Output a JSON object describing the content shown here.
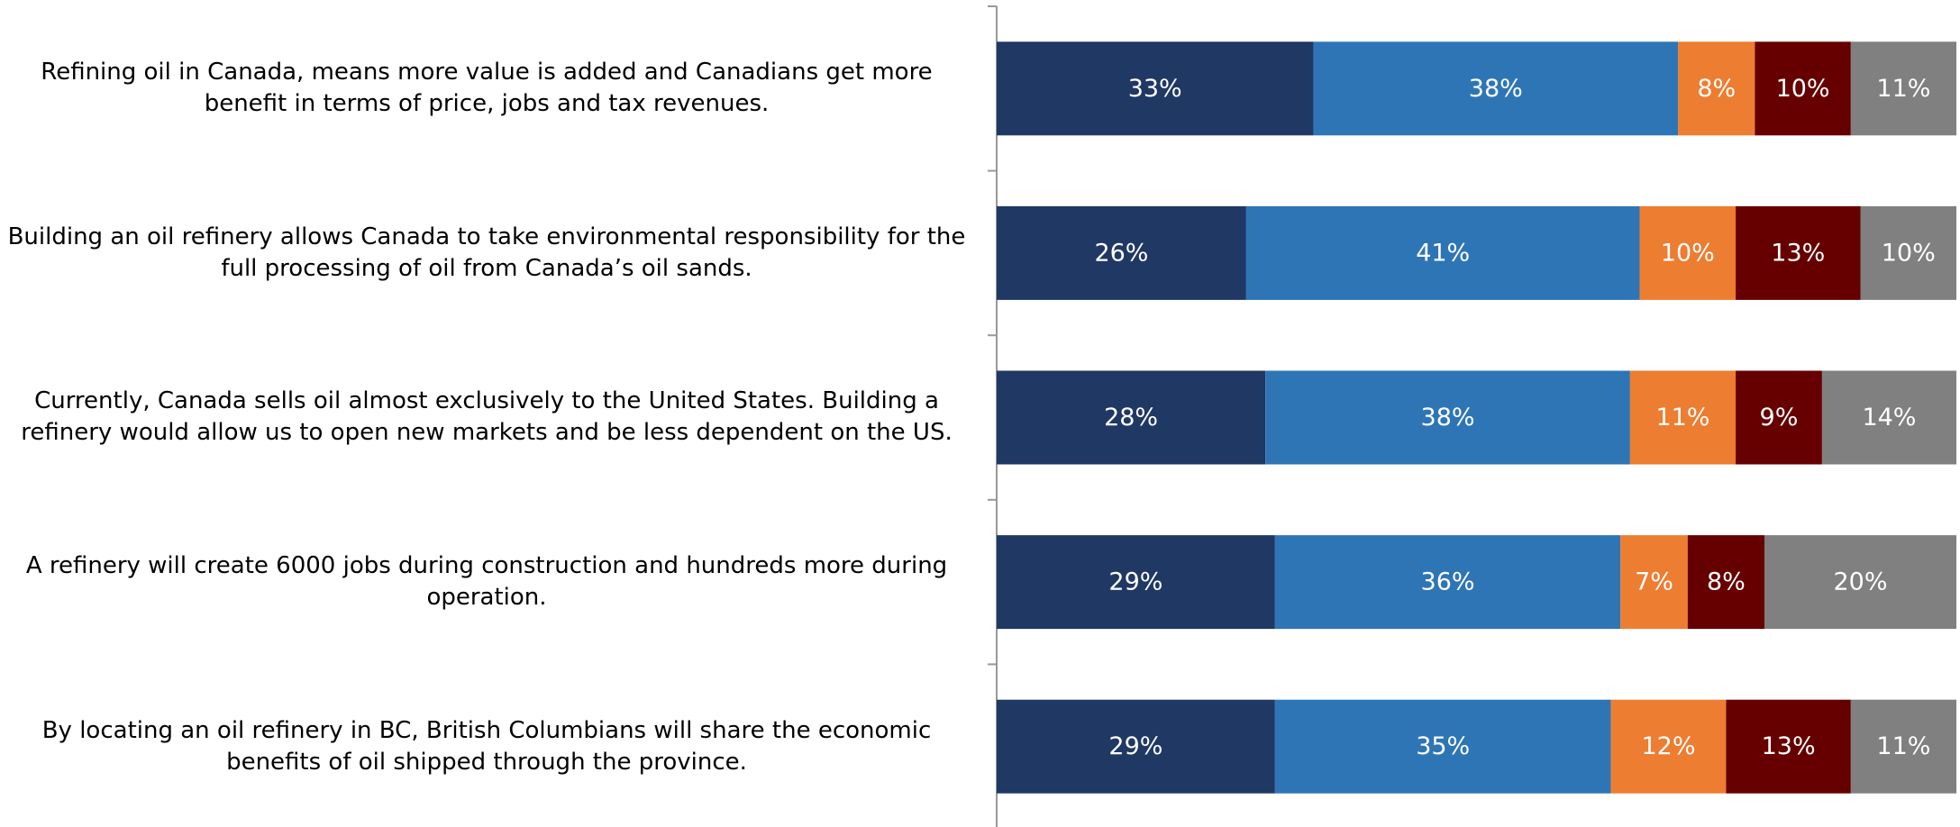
{
  "chart_data": {
    "type": "stacked_bar",
    "orientation": "horizontal",
    "categories": [
      "Refining oil in Canada, means more value is added and Canadians get more benefit in terms of price, jobs and tax revenues.",
      "Building an oil refinery allows Canada to take environmental responsibility for the full processing of oil from Canada’s oil sands.",
      "Currently, Canada sells oil almost exclusively to the United States. Building a refinery would allow us to open new markets and be less dependent on the US.",
      "A refinery will create 6000 jobs during construction and hundreds more during operation.",
      "By locating an oil refinery in BC, British Columbians will share the economic benefits of oil shipped through the province."
    ],
    "series": [
      {
        "color": "#203864",
        "values": [
          33,
          26,
          28,
          29,
          29
        ],
        "value_labels": [
          "33%",
          "26%",
          "28%",
          "29%",
          "29%"
        ]
      },
      {
        "color": "#2e75b6",
        "values": [
          38,
          41,
          38,
          36,
          35
        ],
        "value_labels": [
          "38%",
          "41%",
          "38%",
          "36%",
          "35%"
        ]
      },
      {
        "color": "#ed7d31",
        "values": [
          8,
          10,
          11,
          7,
          12
        ],
        "value_labels": [
          "8%",
          "10%",
          "11%",
          "7%",
          "12%"
        ]
      },
      {
        "color": "#660000",
        "values": [
          10,
          13,
          9,
          8,
          13
        ],
        "value_labels": [
          "10%",
          "13%",
          "9%",
          "8%",
          "13%"
        ]
      },
      {
        "color": "#808080",
        "values": [
          11,
          10,
          14,
          20,
          11
        ],
        "value_labels": [
          "11%",
          "10%",
          "14%",
          "20%",
          "11%"
        ]
      }
    ],
    "xlim": [
      0,
      100
    ]
  }
}
